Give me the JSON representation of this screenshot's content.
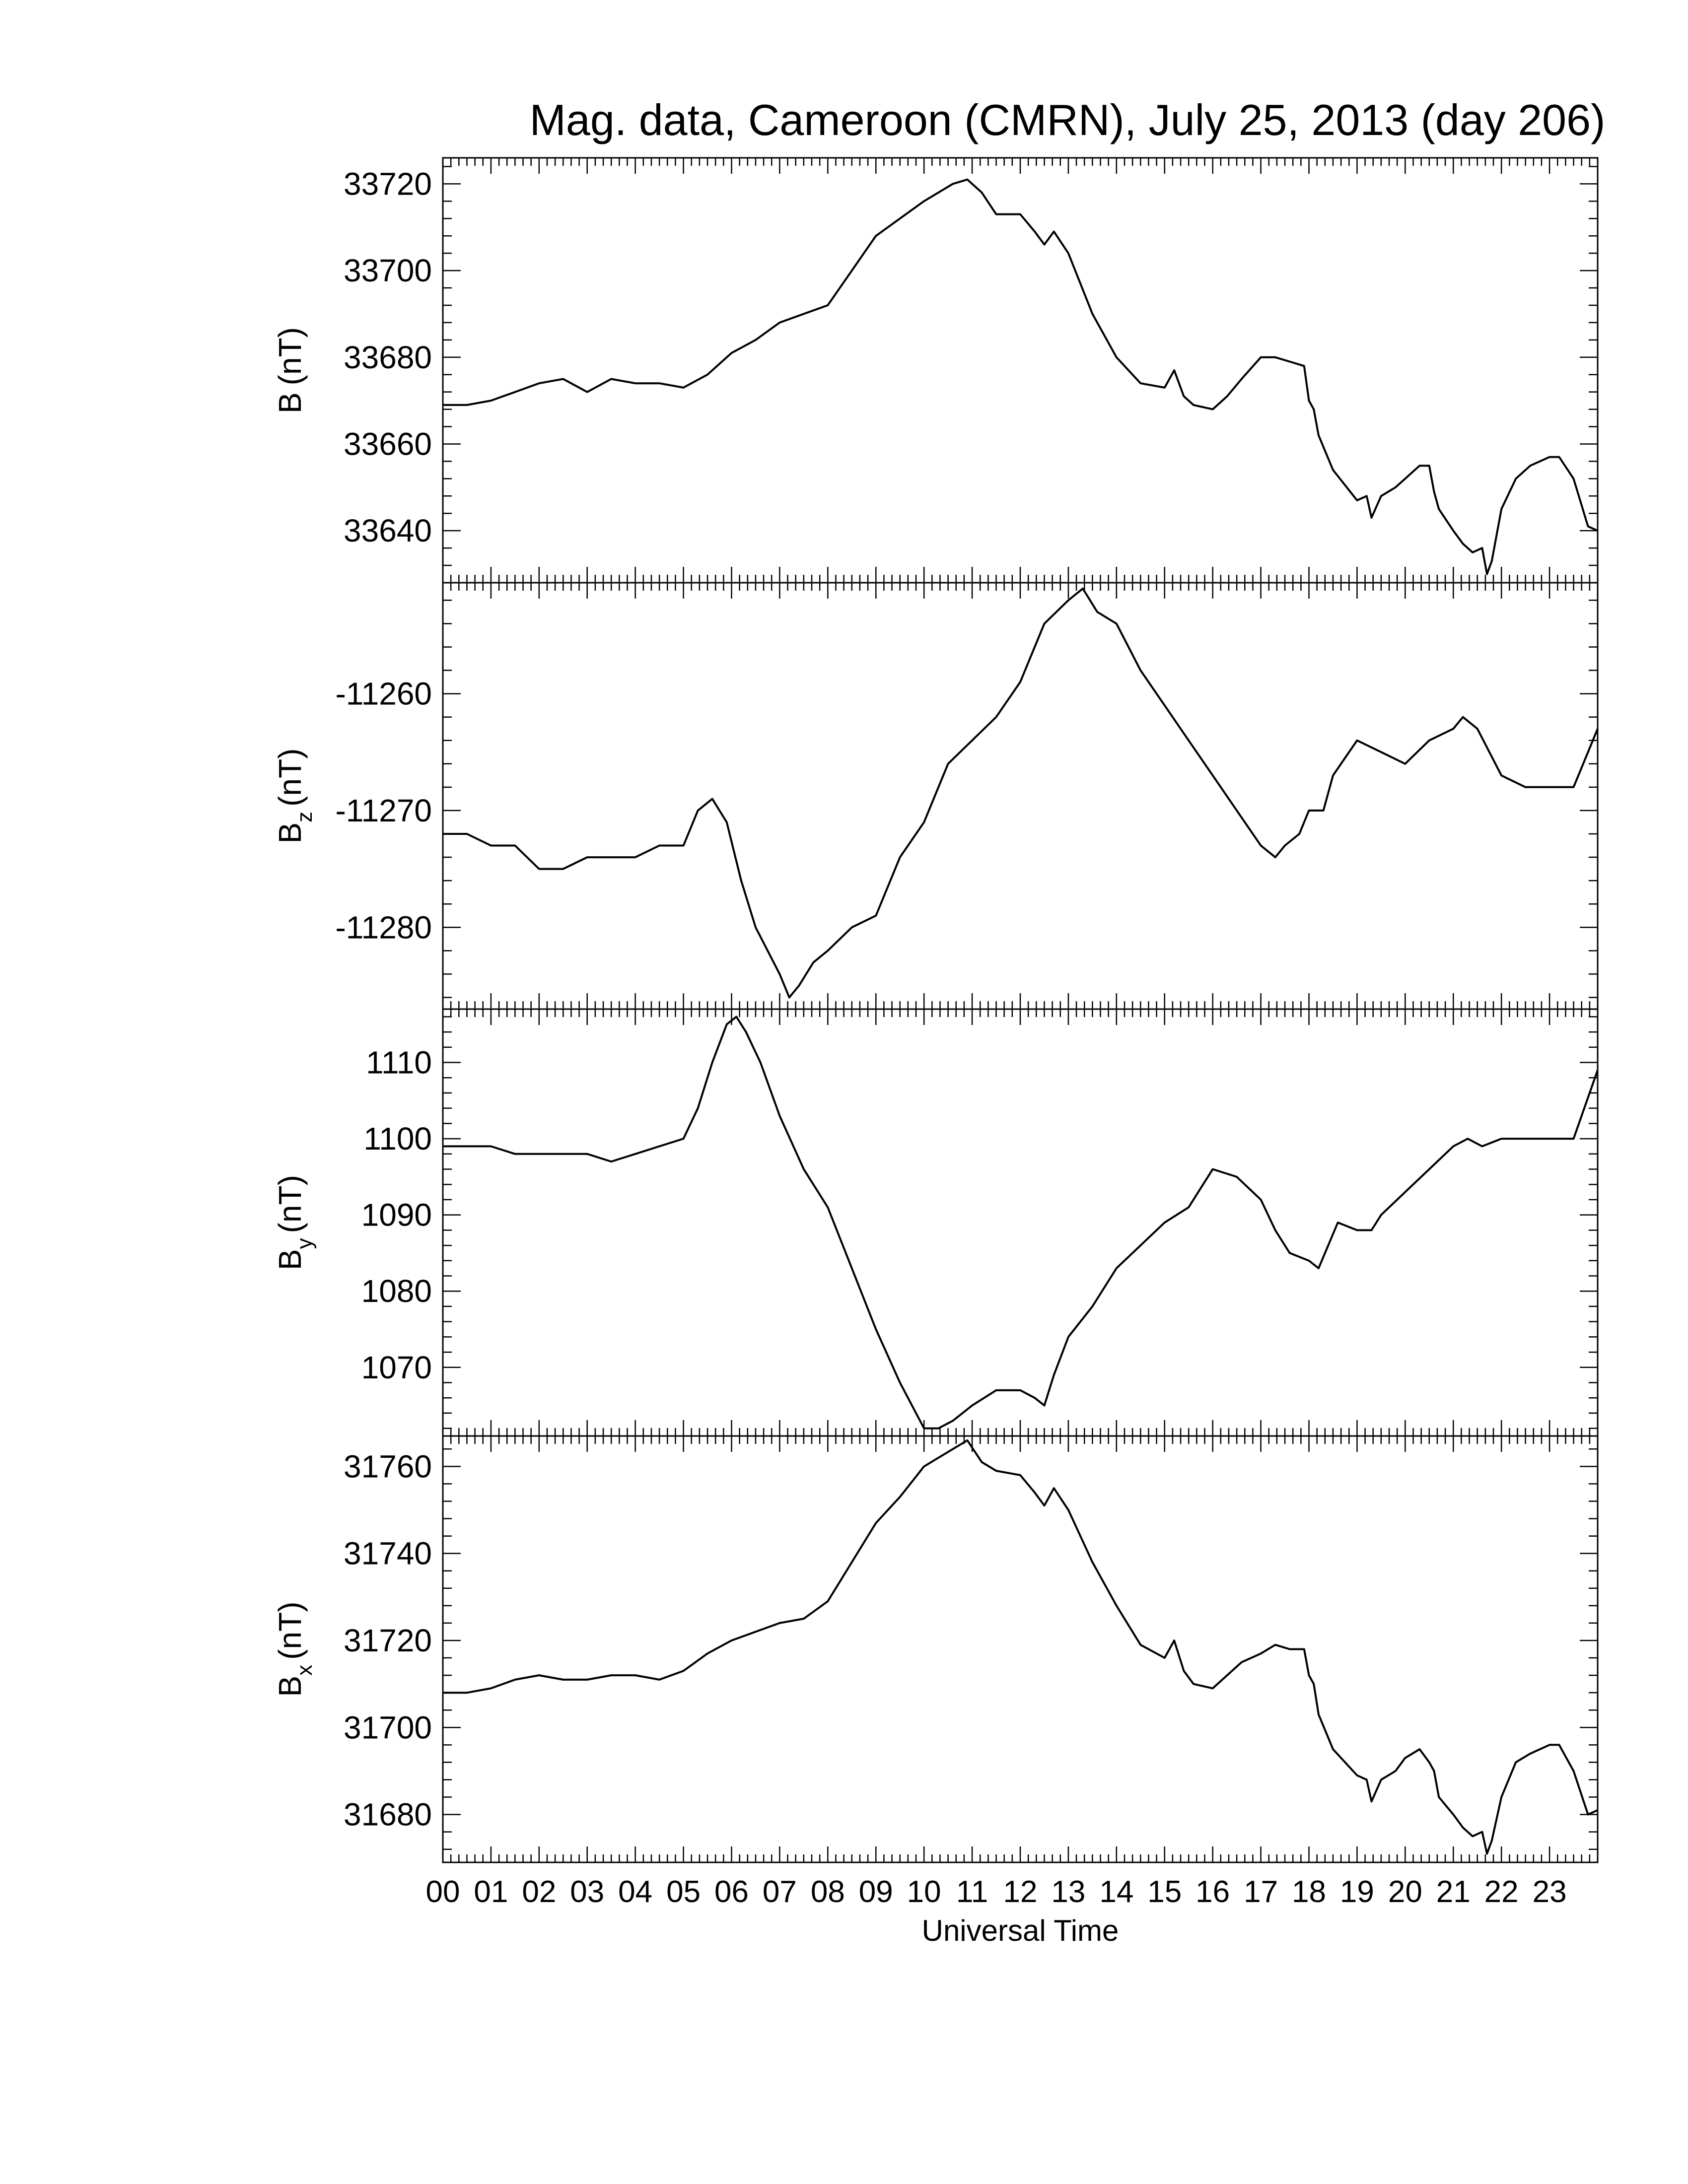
{
  "title": "Mag. data, Cameroon (CMRN), July 25, 2013 (day 206)",
  "xlabel": "Universal Time",
  "xticks": [
    "00",
    "01",
    "02",
    "03",
    "04",
    "05",
    "06",
    "07",
    "08",
    "09",
    "10",
    "11",
    "12",
    "13",
    "14",
    "15",
    "16",
    "17",
    "18",
    "19",
    "20",
    "21",
    "22",
    "23"
  ],
  "line_color": "#000000",
  "chart_data": [
    {
      "type": "line",
      "name": "B",
      "ylabel": {
        "main": "B",
        "sub": "",
        "unit": "(nT)"
      },
      "ylim": [
        33628,
        33726
      ],
      "ytick_values": [
        33640,
        33660,
        33680,
        33700,
        33720
      ],
      "ytick_labels": [
        "33640",
        "33660",
        "33680",
        "33700",
        "33720"
      ],
      "x": [
        0,
        0.5,
        1,
        1.5,
        2,
        2.5,
        3,
        3.5,
        4,
        4.5,
        5,
        5.5,
        6,
        6.5,
        7,
        7.5,
        8,
        8.5,
        9,
        9.5,
        10,
        10.3,
        10.6,
        10.9,
        11.2,
        11.5,
        12,
        12.3,
        12.5,
        12.7,
        13,
        13.5,
        14,
        14.5,
        15,
        15.2,
        15.4,
        15.6,
        16,
        16.3,
        16.6,
        17,
        17.3,
        17.6,
        17.9,
        18.0,
        18.1,
        18.2,
        18.5,
        19,
        19.2,
        19.3,
        19.5,
        19.8,
        20,
        20.3,
        20.5,
        20.6,
        20.7,
        21,
        21.2,
        21.4,
        21.6,
        21.7,
        21.8,
        22,
        22.3,
        22.6,
        23,
        23.2,
        23.5,
        23.8,
        24
      ],
      "y": [
        33669,
        33669,
        33670,
        33672,
        33674,
        33675,
        33672,
        33675,
        33674,
        33674,
        33673,
        33676,
        33681,
        33684,
        33688,
        33690,
        33692,
        33700,
        33708,
        33712,
        33716,
        33718,
        33720,
        33721,
        33718,
        33713,
        33713,
        33709,
        33706,
        33709,
        33704,
        33690,
        33680,
        33674,
        33673,
        33677,
        33671,
        33669,
        33668,
        33671,
        33675,
        33680,
        33680,
        33679,
        33678,
        33670,
        33668,
        33662,
        33654,
        33647,
        33648,
        33643,
        33648,
        33650,
        33652,
        33655,
        33655,
        33649,
        33645,
        33640,
        33637,
        33635,
        33636,
        33630,
        33633,
        33645,
        33652,
        33655,
        33657,
        33657,
        33652,
        33641,
        33640
      ]
    },
    {
      "type": "line",
      "name": "Bz",
      "ylabel": {
        "main": "B",
        "sub": "z",
        "unit": "(nT)"
      },
      "ylim": [
        -11287.0,
        -11250.5
      ],
      "ytick_values": [
        -11280,
        -11270,
        -11260
      ],
      "ytick_labels": [
        "-11280",
        "-11270",
        "-11260"
      ],
      "x": [
        0,
        0.5,
        1,
        1.5,
        2,
        2.5,
        3,
        3.5,
        4,
        4.5,
        5,
        5.3,
        5.6,
        5.9,
        6.2,
        6.5,
        7,
        7.2,
        7.4,
        7.7,
        8,
        8.5,
        9,
        9.5,
        10,
        10.5,
        11,
        11.5,
        12,
        12.5,
        13,
        13.3,
        13.6,
        14,
        14.5,
        15,
        15.5,
        16,
        16.5,
        17,
        17.3,
        17.5,
        17.8,
        18,
        18.3,
        18.5,
        19,
        19.5,
        20,
        20.5,
        21,
        21.2,
        21.5,
        22,
        22.5,
        23,
        23.5,
        24
      ],
      "y": [
        -11272,
        -11272,
        -11273,
        -11273,
        -11275,
        -11275,
        -11274,
        -11274,
        -11274,
        -11273,
        -11273,
        -11270,
        -11269,
        -11271,
        -11276,
        -11280,
        -11284,
        -11286,
        -11285,
        -11283,
        -11282,
        -11280,
        -11279,
        -11274,
        -11271,
        -11266,
        -11264,
        -11262,
        -11259,
        -11254,
        -11252,
        -11251,
        -11253,
        -11254,
        -11258,
        -11261,
        -11264,
        -11267,
        -11270,
        -11273,
        -11274,
        -11273,
        -11272,
        -11270,
        -11270,
        -11267,
        -11264,
        -11265,
        -11266,
        -11264,
        -11263,
        -11262,
        -11263,
        -11267,
        -11268,
        -11268,
        -11268,
        -11263
      ]
    },
    {
      "type": "line",
      "name": "By",
      "ylabel": {
        "main": "B",
        "sub": "y",
        "unit": "(nT)"
      },
      "ylim": [
        1061,
        1117
      ],
      "ytick_values": [
        1070,
        1080,
        1090,
        1100,
        1110
      ],
      "ytick_labels": [
        "1070",
        "1080",
        "1090",
        "1100",
        "1110"
      ],
      "x": [
        0,
        0.5,
        1,
        1.5,
        2,
        2.5,
        3,
        3.5,
        4,
        4.5,
        5,
        5.3,
        5.6,
        5.9,
        6.1,
        6.3,
        6.6,
        7,
        7.5,
        8,
        8.5,
        9,
        9.5,
        10,
        10.3,
        10.6,
        11,
        11.5,
        12,
        12.3,
        12.5,
        12.7,
        13,
        13.5,
        14,
        14.5,
        15,
        15.5,
        15.8,
        16,
        16.5,
        17,
        17.3,
        17.6,
        18,
        18.2,
        18.4,
        18.6,
        19,
        19.3,
        19.5,
        20,
        20.5,
        21,
        21.3,
        21.6,
        22,
        22.5,
        23,
        23.5,
        24
      ],
      "y": [
        1099,
        1099,
        1099,
        1098,
        1098,
        1098,
        1098,
        1097,
        1098,
        1099,
        1100,
        1104,
        1110,
        1115,
        1116,
        1114,
        1110,
        1103,
        1096,
        1091,
        1083,
        1075,
        1068,
        1062,
        1062,
        1063,
        1065,
        1067,
        1067,
        1066,
        1065,
        1069,
        1074,
        1078,
        1083,
        1086,
        1089,
        1091,
        1094,
        1096,
        1095,
        1092,
        1088,
        1085,
        1084,
        1083,
        1086,
        1089,
        1088,
        1088,
        1090,
        1093,
        1096,
        1099,
        1100,
        1099,
        1100,
        1100,
        1100,
        1100,
        1109
      ]
    },
    {
      "type": "line",
      "name": "Bx",
      "ylabel": {
        "main": "B",
        "sub": "x",
        "unit": "(nT)"
      },
      "ylim": [
        31669,
        31767
      ],
      "ytick_values": [
        31680,
        31700,
        31720,
        31740,
        31760
      ],
      "ytick_labels": [
        "31680",
        "31700",
        "31720",
        "31740",
        "31760"
      ],
      "x": [
        0,
        0.5,
        1,
        1.5,
        2,
        2.5,
        3,
        3.5,
        4,
        4.5,
        5,
        5.5,
        6,
        6.5,
        7,
        7.5,
        8,
        8.5,
        9,
        9.5,
        10,
        10.3,
        10.6,
        10.9,
        11.2,
        11.5,
        12,
        12.3,
        12.5,
        12.7,
        13,
        13.5,
        14,
        14.5,
        15,
        15.2,
        15.4,
        15.6,
        16,
        16.3,
        16.6,
        17,
        17.3,
        17.6,
        17.9,
        18.0,
        18.1,
        18.2,
        18.5,
        19,
        19.2,
        19.3,
        19.5,
        19.8,
        20,
        20.3,
        20.5,
        20.6,
        20.7,
        21,
        21.2,
        21.4,
        21.6,
        21.7,
        21.8,
        22,
        22.3,
        22.6,
        23,
        23.2,
        23.5,
        23.8,
        24
      ],
      "y": [
        31708,
        31708,
        31709,
        31711,
        31712,
        31711,
        31711,
        31712,
        31712,
        31711,
        31713,
        31717,
        31720,
        31722,
        31724,
        31725,
        31729,
        31738,
        31747,
        31753,
        31760,
        31762,
        31764,
        31766,
        31761,
        31759,
        31758,
        31754,
        31751,
        31755,
        31750,
        31738,
        31728,
        31719,
        31716,
        31720,
        31713,
        31710,
        31709,
        31712,
        31715,
        31717,
        31719,
        31718,
        31718,
        31712,
        31710,
        31703,
        31695,
        31689,
        31688,
        31683,
        31688,
        31690,
        31693,
        31695,
        31692,
        31690,
        31684,
        31680,
        31677,
        31675,
        31676,
        31671,
        31674,
        31684,
        31692,
        31694,
        31696,
        31696,
        31690,
        31680,
        31681
      ]
    }
  ]
}
